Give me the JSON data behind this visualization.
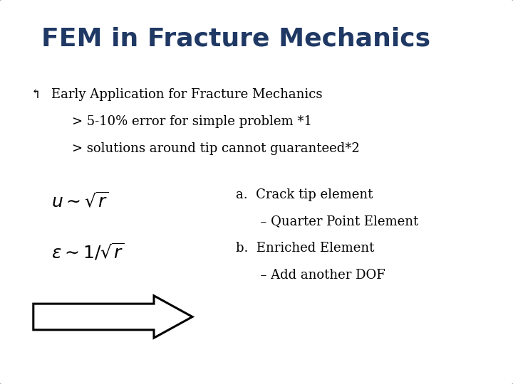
{
  "title": "FEM in Fracture Mechanics",
  "title_color": "#1F3864",
  "title_fontsize": 26,
  "bg_color": "#FFFFFF",
  "slide_bg": "#FFFFFF",
  "bullet_symbol": "↰",
  "bullet_text": "Early Application for Fracture Mechanics",
  "sub1": "> 5-10% error for simple problem *1",
  "sub2": "> solutions around tip cannot guaranteed*2",
  "eq1": "$u \\sim \\sqrt{r}$",
  "eq2": "$\\varepsilon \\sim 1/\\sqrt{r}$",
  "list_a1": "a.  Crack tip element",
  "list_a2": "      – Quarter Point Element",
  "list_b1": "b.  Enriched Element",
  "list_b2": "      – Add another DOF",
  "text_color": "#000000",
  "eq_color": "#000000",
  "border_color": "#AAAAAA",
  "text_fontsize": 13,
  "eq_fontsize": 18
}
